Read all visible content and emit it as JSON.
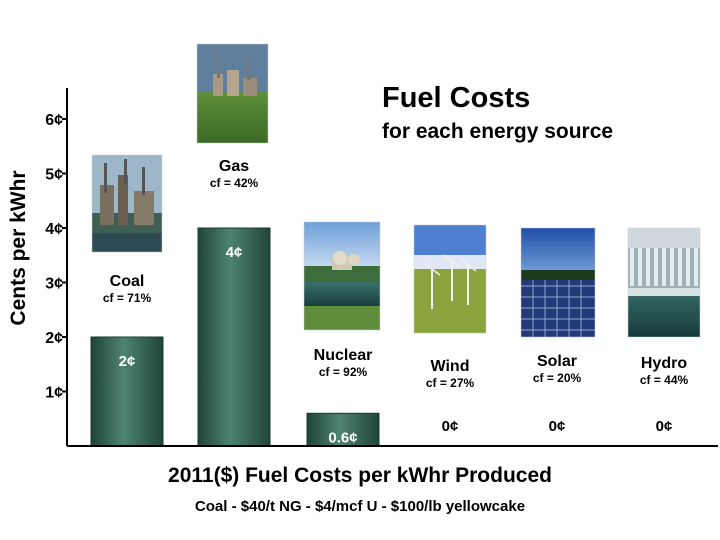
{
  "chart_data": {
    "type": "bar",
    "title": "Fuel Costs",
    "subtitle": "for each energy source",
    "xlabel": "2011($) Fuel Costs per kWhr Produced",
    "ylabel": "Cents per kWhr",
    "footnote": "Coal - $40/t   NG - $4/mcf   U - $100/lb yellowcake",
    "ylim": [
      0,
      6
    ],
    "yticks": [
      {
        "value": 1,
        "label": "1¢"
      },
      {
        "value": 2,
        "label": "2¢"
      },
      {
        "value": 3,
        "label": "3¢"
      },
      {
        "value": 4,
        "label": "4¢"
      },
      {
        "value": 5,
        "label": "5¢"
      },
      {
        "value": 6,
        "label": "6¢"
      }
    ],
    "categories": [
      "Coal",
      "Gas",
      "Nuclear",
      "Wind",
      "Solar",
      "Hydro"
    ],
    "capacity_factors": [
      "cf = 71%",
      "cf = 42%",
      "cf = 92%",
      "cf = 27%",
      "cf = 20%",
      "cf = 44%"
    ],
    "values": [
      2,
      4,
      0.6,
      0,
      0,
      0
    ],
    "value_labels": [
      "2¢",
      "4¢",
      "0.6¢",
      "0¢",
      "0¢",
      "0¢"
    ],
    "images": [
      "coal-plant-photo",
      "gas-plant-photo",
      "nuclear-plant-photo",
      "wind-farm-photo",
      "solar-array-photo",
      "hydro-dam-photo"
    ],
    "grid": false,
    "bar_color": "#2e5b4c",
    "bar_highlight": "#5a8f7c"
  }
}
